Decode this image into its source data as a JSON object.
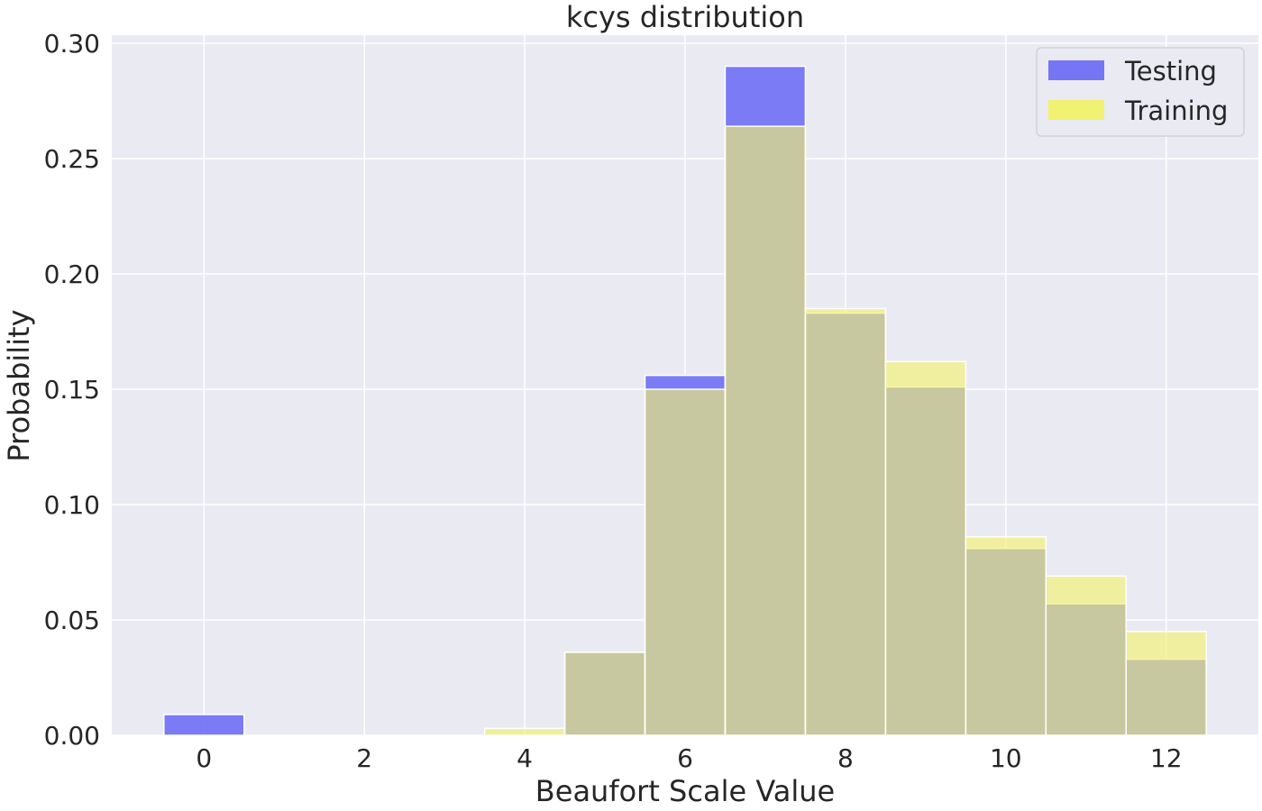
{
  "chart_data": {
    "type": "bar",
    "title": "kcys distribution",
    "xlabel": "Beaufort Scale Value",
    "ylabel": "Probability",
    "xlim": [
      -1.15,
      13.15
    ],
    "ylim": [
      0,
      0.3035
    ],
    "xticks": [
      0,
      2,
      4,
      6,
      8,
      10,
      12
    ],
    "yticks": [
      0.0,
      0.05,
      0.1,
      0.15,
      0.2,
      0.25,
      0.3
    ],
    "ytick_labels": [
      "0.00",
      "0.05",
      "0.10",
      "0.15",
      "0.20",
      "0.25",
      "0.30"
    ],
    "x": [
      0,
      1,
      2,
      3,
      4,
      5,
      6,
      7,
      8,
      9,
      10,
      11,
      12
    ],
    "bin_width": 1,
    "grid": true,
    "legend_position": "top-right",
    "series": [
      {
        "name": "Testing",
        "color": "#7575f5",
        "values": [
          0.009,
          0,
          0,
          0,
          0,
          0.036,
          0.156,
          0.29,
          0.183,
          0.151,
          0.081,
          0.057,
          0.033
        ]
      },
      {
        "name": "Training",
        "color": "#f1f172",
        "values": [
          0,
          0,
          0,
          0,
          0.003,
          0.036,
          0.15,
          0.264,
          0.185,
          0.162,
          0.086,
          0.069,
          0.045
        ]
      }
    ],
    "colors": {
      "background": "#eaeaf2",
      "grid": "#ffffff",
      "overlap": "#b8b87a",
      "text": "#262626"
    }
  }
}
